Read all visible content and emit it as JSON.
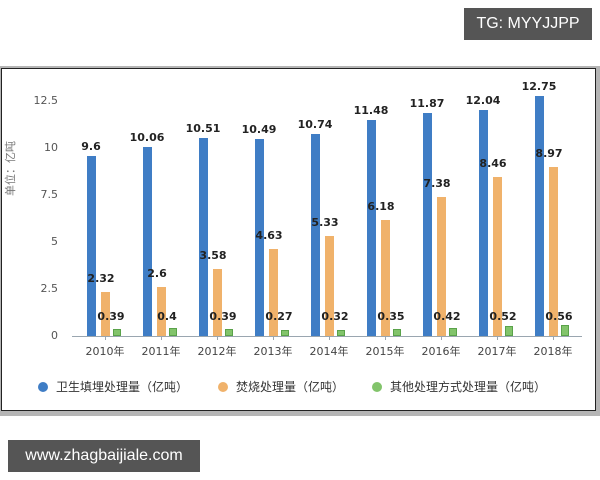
{
  "watermarks": {
    "top_right": "TG: MYYJJPP",
    "bottom_left": "www.zhagbaijiale.com"
  },
  "colors": {
    "series1": "#3f7dc5",
    "series2": "#f0b26b",
    "series3": "#82c46b"
  },
  "chart_data": {
    "type": "bar",
    "title": "",
    "xlabel": "",
    "ylabel": "单位：亿吨",
    "ylim": [
      0,
      12.5
    ],
    "yticks": [
      "0",
      "2.5",
      "5",
      "7.5",
      "10",
      "12.5"
    ],
    "grid": false,
    "legend_position": "bottom",
    "categories": [
      "2010年",
      "2011年",
      "2012年",
      "2013年",
      "2014年",
      "2015年",
      "2016年",
      "2017年",
      "2018年"
    ],
    "series": [
      {
        "name": "卫生填埋处理量（亿吨）",
        "values": [
          9.6,
          10.06,
          10.51,
          10.49,
          10.74,
          11.48,
          11.87,
          12.04,
          12.75
        ]
      },
      {
        "name": "焚烧处理量（亿吨）",
        "values": [
          2.32,
          2.6,
          3.58,
          4.63,
          5.33,
          6.18,
          7.38,
          8.46,
          8.97
        ]
      },
      {
        "name": "其他处理方式处理量（亿吨）",
        "values": [
          0.39,
          0.4,
          0.39,
          0.27,
          0.32,
          0.35,
          0.42,
          0.52,
          0.56
        ]
      }
    ],
    "value_labels": [
      [
        "9.6",
        "10.06",
        "10.51",
        "10.49",
        "10.74",
        "11.48",
        "11.87",
        "12.04",
        "12.75"
      ],
      [
        "2.32",
        "2.6",
        "3.58",
        "4.63",
        "5.33",
        "6.18",
        "7.38",
        "8.46",
        "8.97"
      ],
      [
        "0.39",
        "0.4",
        "0.39",
        "0.27",
        "0.32",
        "0.35",
        "0.42",
        "0.52",
        "0.56"
      ]
    ]
  }
}
